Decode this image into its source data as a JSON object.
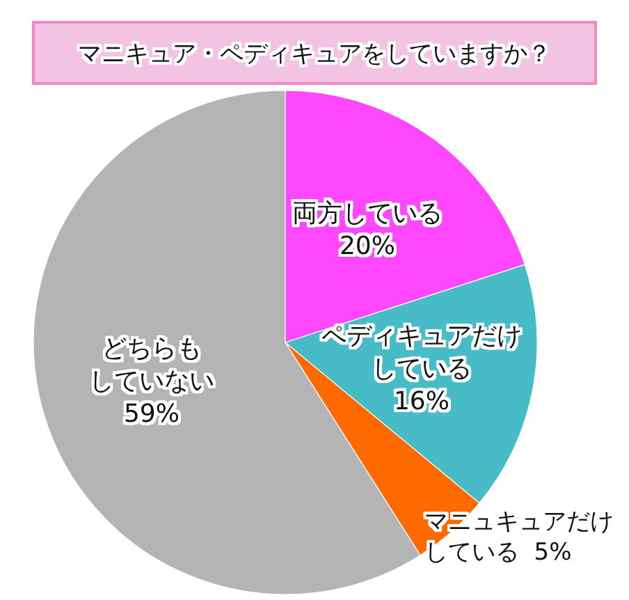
{
  "chart_data": {
    "type": "pie",
    "title": "マニキュア・ペディキュアをしていますか？",
    "categories": [
      "両方している",
      "ペディキュアだけしている",
      "マニュキュアだけしている",
      "どちらもしていない"
    ],
    "values": [
      20,
      16,
      5,
      59
    ],
    "colors": [
      "#ff47ff",
      "#48bcc6",
      "#ff6a00",
      "#b4b4b4"
    ],
    "value_labels": [
      "20%",
      "16%",
      "5%",
      "59%"
    ]
  }
}
